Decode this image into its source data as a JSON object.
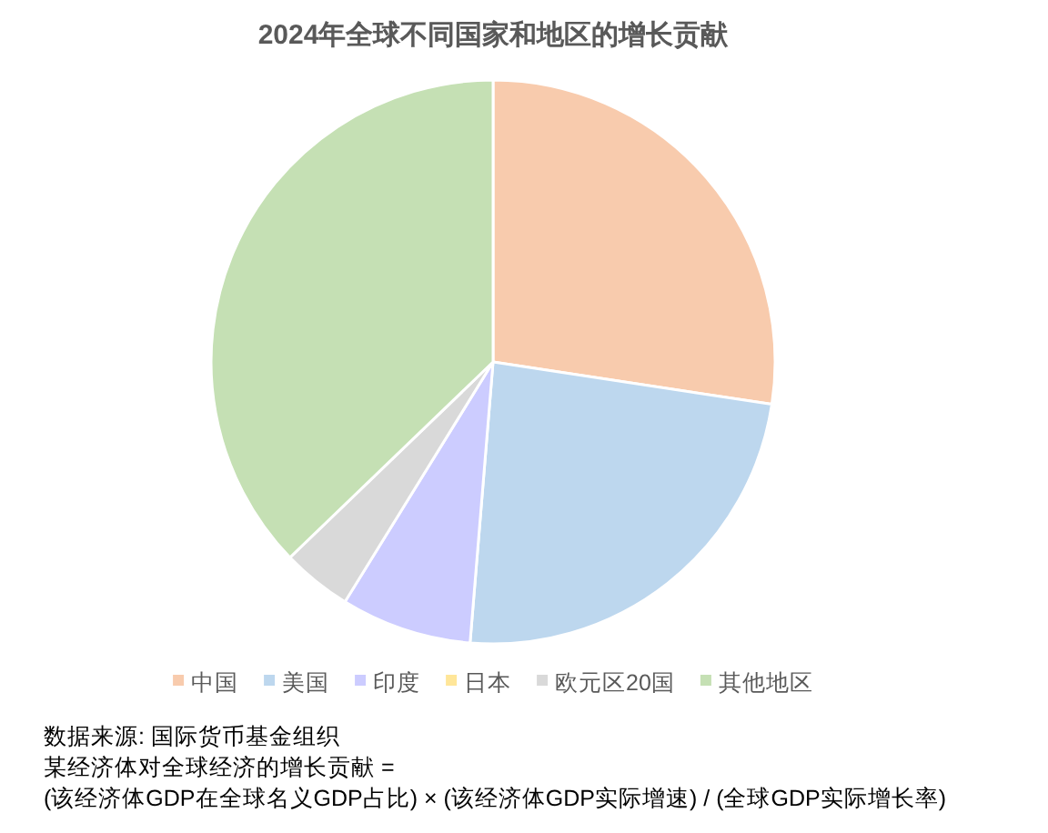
{
  "chart_data": {
    "type": "pie",
    "title": "2024年全球不同国家和地区的增长贡献",
    "categories": [
      "中国",
      "美国",
      "印度",
      "日本",
      "欧元区20国",
      "其他地区"
    ],
    "values": [
      27.4,
      23.9,
      7.5,
      0,
      4.0,
      37.2
    ],
    "colors": [
      "#f8cbad",
      "#bdd7ee",
      "#ccccff",
      "#ffe699",
      "#d9d9d9",
      "#c5e0b4"
    ],
    "legend": "bottom",
    "annotations": [
      "数据来源: 国际货币基金组织",
      "某经济体对全球经济的增长贡献 =",
      "(该经济体GDP在全球名义GDP占比) × (该经济体GDP实际增速) / (全球GDP实际增长率)"
    ]
  }
}
